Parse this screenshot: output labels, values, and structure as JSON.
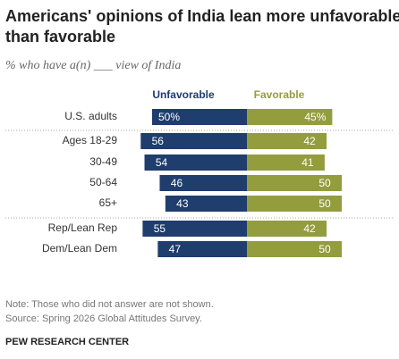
{
  "chart_data": {
    "type": "diverging_bar",
    "title": "Americans' opinions of India lean more unfavorable than favorable",
    "subtitle": "% who have a(n) ___ view of India",
    "categories": [
      "U.S. adults",
      "Ages 18-29",
      "30-49",
      "50-64",
      "65+",
      "Rep/Lean Rep",
      "Dem/Lean Dem"
    ],
    "series": [
      {
        "name": "Unfavorable",
        "color": "#1f3d6d",
        "values": [
          50,
          56,
          54,
          46,
          43,
          55,
          47
        ],
        "value_labels": [
          "50%",
          "56",
          "54",
          "46",
          "43",
          "55",
          "47"
        ]
      },
      {
        "name": "Favorable",
        "color": "#939d3e",
        "values": [
          45,
          42,
          41,
          50,
          50,
          42,
          50
        ],
        "value_labels": [
          "45%",
          "42",
          "41",
          "50",
          "50",
          "42",
          "50"
        ]
      }
    ],
    "note": "Note: Those who did not answer are not shown.",
    "source": "Source: Spring 2026 Global Attitudes Survey.",
    "credit": "PEW RESEARCH CENTER"
  }
}
